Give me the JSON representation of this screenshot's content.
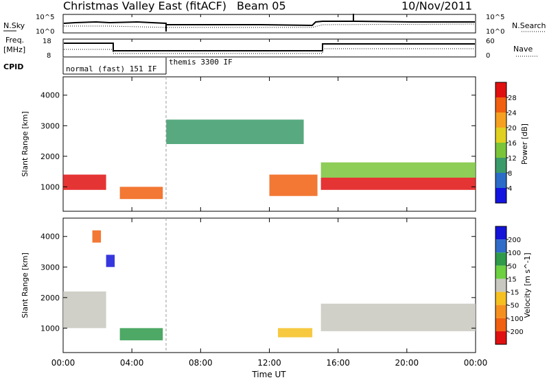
{
  "header": {
    "title": "Christmas Valley East (fitACF)",
    "beam": "Beam 05",
    "date": "10/Nov/2011"
  },
  "panels": {
    "nsky": {
      "label": "N.Sky",
      "right_label": "N.Search",
      "tick_top": "10^5",
      "tick_bottom": "10^0",
      "right_tick_top": "10^5",
      "right_tick_bottom": "10^0"
    },
    "freq": {
      "label": "Freq.",
      "unit": "[MHz]",
      "left_ticks": [
        "18",
        "8"
      ],
      "right_label": "Nave",
      "right_ticks": [
        "60",
        "0"
      ]
    },
    "cpid": {
      "label": "CPID",
      "segments": [
        "normal (fast) 151 IF",
        "themis 3300 IF"
      ]
    }
  },
  "chart_data": [
    {
      "type": "heatmap",
      "title": "",
      "xlabel": "",
      "ylabel": "Slant Range [km]",
      "x_ticks": [
        "00:00",
        "04:00",
        "08:00",
        "12:00",
        "16:00",
        "20:00",
        "00:00"
      ],
      "y_ticks": [
        1000,
        2000,
        3000,
        4000
      ],
      "ylim": [
        200,
        4600
      ],
      "colorbar": {
        "label": "Power [dB]",
        "ticks": [
          4,
          8,
          12,
          16,
          20,
          24,
          28
        ],
        "colors": [
          "#1414e0",
          "#2a6cc8",
          "#3b9a6a",
          "#7ac43a",
          "#e0d020",
          "#f5a020",
          "#f06010",
          "#e01010"
        ]
      },
      "features": [
        {
          "x": [
            0.0,
            2.5
          ],
          "range": [
            900,
            1400
          ],
          "value": 28
        },
        {
          "x": [
            3.3,
            5.8
          ],
          "range": [
            600,
            1000
          ],
          "value": 24
        },
        {
          "x": [
            6.0,
            14.0
          ],
          "range": [
            2400,
            3200
          ],
          "value": 8
        },
        {
          "x": [
            12.0,
            14.8
          ],
          "range": [
            700,
            1400
          ],
          "value": 24
        },
        {
          "x": [
            15.0,
            24.0
          ],
          "range": [
            900,
            1300
          ],
          "value": 28
        },
        {
          "x": [
            15.0,
            24.0
          ],
          "range": [
            1300,
            1800
          ],
          "value": 12
        }
      ]
    },
    {
      "type": "heatmap",
      "title": "",
      "xlabel": "Time UT",
      "ylabel": "Slant Range [km]",
      "x_ticks": [
        "00:00",
        "04:00",
        "08:00",
        "12:00",
        "16:00",
        "20:00",
        "00:00"
      ],
      "y_ticks": [
        1000,
        2000,
        3000,
        4000
      ],
      "ylim": [
        200,
        4600
      ],
      "colorbar": {
        "label": "Velocity [m s^-1]",
        "ticks": [
          200,
          100,
          50,
          15,
          -15,
          -50,
          -100,
          -200
        ],
        "colors": [
          "#1414d8",
          "#306cc8",
          "#2e9a4a",
          "#6cd040",
          "#c8c8c0",
          "#f5c020",
          "#f59020",
          "#f06010",
          "#e01010"
        ]
      },
      "features": [
        {
          "x": [
            3.3,
            5.8
          ],
          "range": [
            600,
            1000
          ],
          "value": 50
        },
        {
          "x": [
            0.0,
            2.5
          ],
          "range": [
            1000,
            2200
          ],
          "value": 0
        },
        {
          "x": [
            15.0,
            24.0
          ],
          "range": [
            900,
            1800
          ],
          "value": 0
        },
        {
          "x": [
            12.5,
            14.5
          ],
          "range": [
            700,
            1000
          ],
          "value": -50
        },
        {
          "x": [
            2.5,
            3.0
          ],
          "range": [
            3000,
            3400
          ],
          "value": 200
        },
        {
          "x": [
            1.7,
            2.2
          ],
          "range": [
            3800,
            4200
          ],
          "value": -200
        }
      ]
    }
  ]
}
